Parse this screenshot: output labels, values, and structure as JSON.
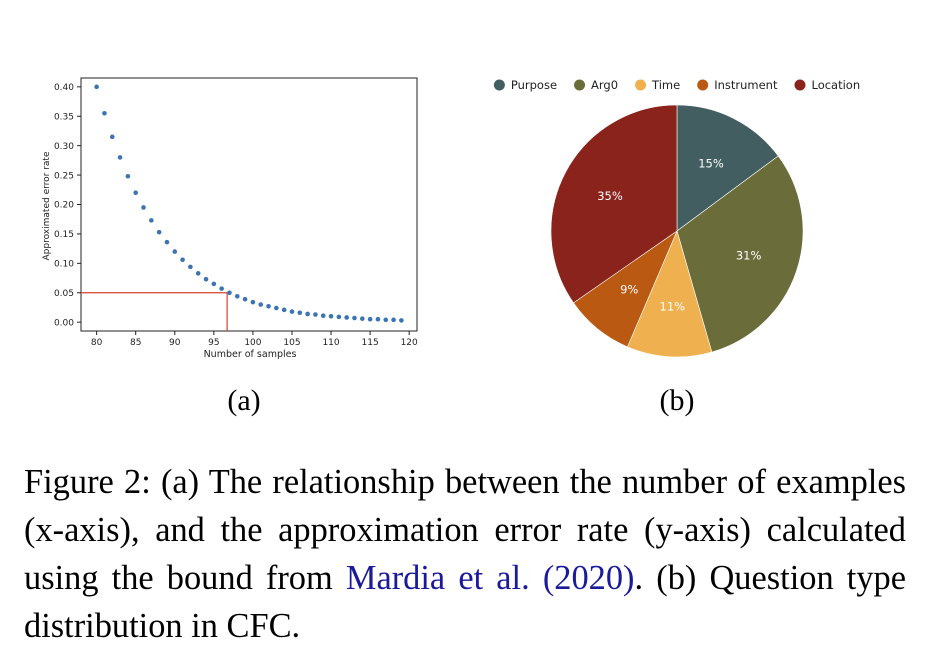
{
  "chart_data": [
    {
      "type": "scatter",
      "panel": "(a)",
      "xlabel": "Number of samples",
      "ylabel": "Approximated error rate",
      "xlim": [
        78,
        121
      ],
      "ylim": [
        -0.015,
        0.415
      ],
      "xticks": [
        80,
        85,
        90,
        95,
        100,
        105,
        110,
        115,
        120
      ],
      "yticks": [
        "0.00",
        "0.05",
        "0.10",
        "0.15",
        "0.20",
        "0.25",
        "0.30",
        "0.35",
        "0.40"
      ],
      "marker_color": "#3a74b4",
      "reference_line_color": "#d9402a",
      "reference_point": {
        "x": 96.7,
        "y": 0.05
      },
      "points": [
        {
          "x": 80,
          "y": 0.4
        },
        {
          "x": 81,
          "y": 0.355
        },
        {
          "x": 82,
          "y": 0.315
        },
        {
          "x": 83,
          "y": 0.28
        },
        {
          "x": 84,
          "y": 0.248
        },
        {
          "x": 85,
          "y": 0.22
        },
        {
          "x": 86,
          "y": 0.195
        },
        {
          "x": 87,
          "y": 0.173
        },
        {
          "x": 88,
          "y": 0.153
        },
        {
          "x": 89,
          "y": 0.136
        },
        {
          "x": 90,
          "y": 0.12
        },
        {
          "x": 91,
          "y": 0.106
        },
        {
          "x": 92,
          "y": 0.094
        },
        {
          "x": 93,
          "y": 0.083
        },
        {
          "x": 94,
          "y": 0.073
        },
        {
          "x": 95,
          "y": 0.065
        },
        {
          "x": 96,
          "y": 0.057
        },
        {
          "x": 97,
          "y": 0.05
        },
        {
          "x": 98,
          "y": 0.044
        },
        {
          "x": 99,
          "y": 0.039
        },
        {
          "x": 100,
          "y": 0.034
        },
        {
          "x": 101,
          "y": 0.03
        },
        {
          "x": 102,
          "y": 0.027
        },
        {
          "x": 103,
          "y": 0.024
        },
        {
          "x": 104,
          "y": 0.021
        },
        {
          "x": 105,
          "y": 0.018
        },
        {
          "x": 106,
          "y": 0.016
        },
        {
          "x": 107,
          "y": 0.014
        },
        {
          "x": 108,
          "y": 0.013
        },
        {
          "x": 109,
          "y": 0.011
        },
        {
          "x": 110,
          "y": 0.01
        },
        {
          "x": 111,
          "y": 0.009
        },
        {
          "x": 112,
          "y": 0.008
        },
        {
          "x": 113,
          "y": 0.007
        },
        {
          "x": 114,
          "y": 0.006
        },
        {
          "x": 115,
          "y": 0.005
        },
        {
          "x": 116,
          "y": 0.005
        },
        {
          "x": 117,
          "y": 0.004
        },
        {
          "x": 118,
          "y": 0.004
        },
        {
          "x": 119,
          "y": 0.003
        }
      ]
    },
    {
      "type": "pie",
      "panel": "(b)",
      "legend_position": "top",
      "slices": [
        {
          "label": "Purpose",
          "value": 15,
          "text": "15%",
          "color": "#435e60"
        },
        {
          "label": "Arg0",
          "value": 31,
          "text": "31%",
          "color": "#6a6d3a"
        },
        {
          "label": "Time",
          "value": 11,
          "text": "11%",
          "color": "#efb04f"
        },
        {
          "label": "Instrument",
          "value": 9,
          "text": "9%",
          "color": "#ba5a12"
        },
        {
          "label": "Location",
          "value": 35,
          "text": "35%",
          "color": "#8b231d"
        }
      ]
    }
  ],
  "panels": {
    "a_label": "(a)",
    "b_label": "(b)"
  },
  "caption": {
    "text_before": "Figure 2: (a) The relationship between the number of examples (x-axis), and the approximation error rate (y-axis) calculated using the bound from ",
    "citation": "Mardia et al. (2020)",
    "text_after": ". (b) Question type distribution in CFC."
  }
}
